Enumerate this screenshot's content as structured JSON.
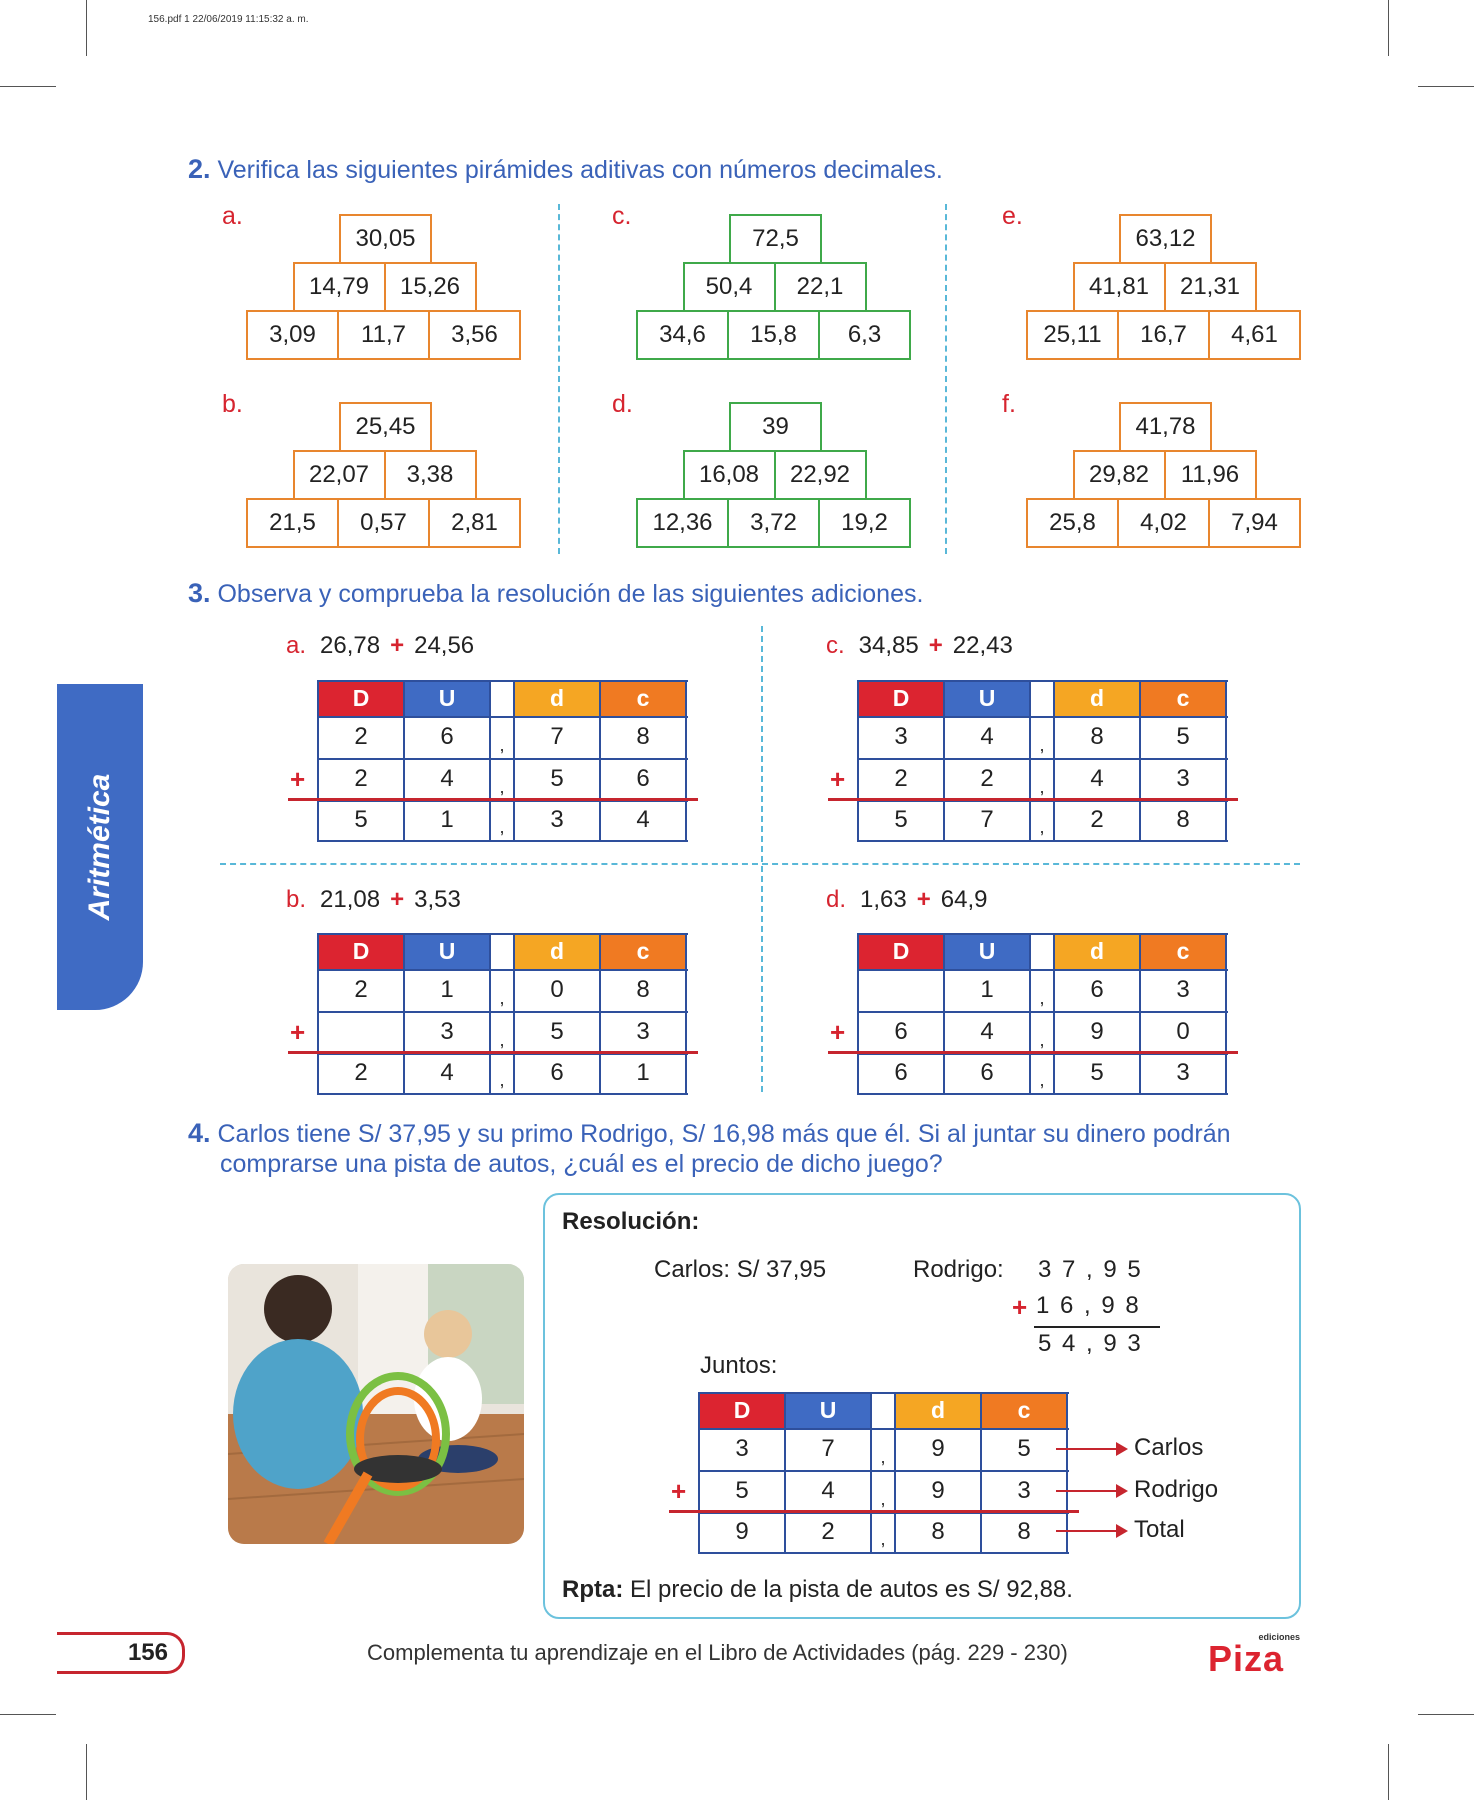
{
  "file_info": "156.pdf  1  22/06/2019  11:15:32 a. m.",
  "side_tab": "Aritmética",
  "section2": {
    "num": "2.",
    "title": "Verifica las siguientes pirámides aditivas con números decimales.",
    "pyramids": [
      {
        "label": "a.",
        "top": "30,05",
        "mid": [
          "14,79",
          "15,26"
        ],
        "base": [
          "3,09",
          "11,7",
          "3,56"
        ],
        "color": "#e8862e"
      },
      {
        "label": "b.",
        "top": "25,45",
        "mid": [
          "22,07",
          "3,38"
        ],
        "base": [
          "21,5",
          "0,57",
          "2,81"
        ],
        "color": "#e8862e"
      },
      {
        "label": "c.",
        "top": "72,5",
        "mid": [
          "50,4",
          "22,1"
        ],
        "base": [
          "34,6",
          "15,8",
          "6,3"
        ],
        "color": "#3fa94a"
      },
      {
        "label": "d.",
        "top": "39",
        "mid": [
          "16,08",
          "22,92"
        ],
        "base": [
          "12,36",
          "3,72",
          "19,2"
        ],
        "color": "#3fa94a"
      },
      {
        "label": "e.",
        "top": "63,12",
        "mid": [
          "41,81",
          "21,31"
        ],
        "base": [
          "25,11",
          "16,7",
          "4,61"
        ],
        "color": "#e8862e"
      },
      {
        "label": "f.",
        "top": "41,78",
        "mid": [
          "29,82",
          "11,96"
        ],
        "base": [
          "25,8",
          "4,02",
          "7,94"
        ],
        "color": "#e8862e"
      }
    ]
  },
  "section3": {
    "num": "3.",
    "title": "Observa y comprueba la resolución de las siguientes adiciones.",
    "headers": [
      "D",
      "U",
      "",
      "d",
      "c"
    ],
    "header_colors": [
      "#dc2430",
      "#3f6bc4",
      "#ffffff",
      "#f5a623",
      "#f07a22"
    ],
    "plus": "+",
    "comma": ",",
    "additions": [
      {
        "label": "a.",
        "a": "26,78",
        "b": "24,56",
        "rows": [
          [
            "2",
            "6",
            "7",
            "8"
          ],
          [
            "2",
            "4",
            "5",
            "6"
          ],
          [
            "5",
            "1",
            "3",
            "4"
          ]
        ]
      },
      {
        "label": "c.",
        "a": "34,85",
        "b": "22,43",
        "rows": [
          [
            "3",
            "4",
            "8",
            "5"
          ],
          [
            "2",
            "2",
            "4",
            "3"
          ],
          [
            "5",
            "7",
            "2",
            "8"
          ]
        ]
      },
      {
        "label": "b.",
        "a": "21,08",
        "b": "3,53",
        "rows": [
          [
            "2",
            "1",
            "0",
            "8"
          ],
          [
            "",
            "3",
            "5",
            "3"
          ],
          [
            "2",
            "4",
            "6",
            "1"
          ]
        ]
      },
      {
        "label": "d.",
        "a": "1,63",
        "b": "64,9",
        "rows": [
          [
            "",
            "1",
            "6",
            "3"
          ],
          [
            "6",
            "4",
            "9",
            "0"
          ],
          [
            "6",
            "6",
            "5",
            "3"
          ]
        ]
      }
    ]
  },
  "section4": {
    "num": "4.",
    "line1": "Carlos tiene S/ 37,95 y su primo Rodrigo, S/ 16,98 más que él. Si al juntar su dinero podrán",
    "line2": "comprarse una pista de autos, ¿cuál es el precio de dicho juego?",
    "resolucion": "Resolución:",
    "carlos": "Carlos:  S/ 37,95",
    "rodrigo_label": "Rodrigo:",
    "rodrigo_sum": {
      "a": "3 7 , 9 5",
      "b": "1 6 , 9 8",
      "r": "5 4 , 9 3",
      "plus": "+"
    },
    "juntos": "Juntos:",
    "rows": [
      [
        "3",
        "7",
        "9",
        "5"
      ],
      [
        "5",
        "4",
        "9",
        "3"
      ],
      [
        "9",
        "2",
        "8",
        "8"
      ]
    ],
    "row_labels": [
      "Carlos",
      "Rodrigo",
      "Total"
    ],
    "rpta_label": "Rpta:",
    "rpta_text": "El precio de la pista de autos es S/ 92,88."
  },
  "footer": {
    "page": "156",
    "text": "Complementa tu aprendizaje en el Libro de Actividades (pág. 229 - 230)",
    "brand": "Piza",
    "brand_small": "ediciones"
  }
}
